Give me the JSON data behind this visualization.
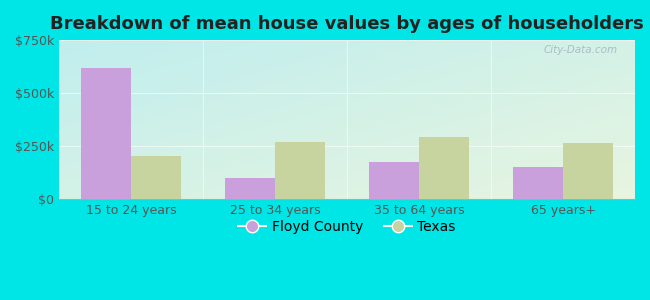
{
  "title": "Breakdown of mean house values by ages of householders",
  "categories": [
    "15 to 24 years",
    "25 to 34 years",
    "35 to 64 years",
    "65 years+"
  ],
  "floyd_county": [
    620000,
    100000,
    175000,
    150000
  ],
  "texas": [
    200000,
    270000,
    290000,
    265000
  ],
  "floyd_color": "#c9a0dc",
  "texas_color": "#c8d4a0",
  "ylim": [
    0,
    750000
  ],
  "yticks": [
    0,
    250000,
    500000,
    750000
  ],
  "ytick_labels": [
    "$0",
    "$250k",
    "$500k",
    "$750k"
  ],
  "bar_width": 0.35,
  "outer_bg": "#00e5e5",
  "legend_labels": [
    "Floyd County",
    "Texas"
  ],
  "watermark": "City-Data.com",
  "title_fontsize": 13,
  "tick_fontsize": 9,
  "legend_fontsize": 10,
  "bg_top_left": "#b2f0f0",
  "bg_bottom_right": "#e8f5e0"
}
